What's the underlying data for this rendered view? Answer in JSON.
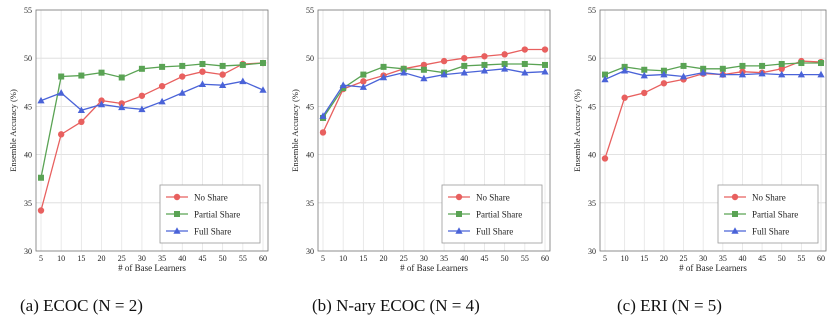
{
  "captions": [
    "(a) ECOC (N = 2)",
    "(b) N-ary ECOC (N = 4)",
    "(c) ERI (N = 5)"
  ],
  "chart_data": [
    {
      "type": "line",
      "xlabel": "# of Base Learners",
      "ylabel": "Ensemble Accuracy (%)",
      "x": [
        5,
        10,
        15,
        20,
        25,
        30,
        35,
        40,
        45,
        50,
        55,
        60
      ],
      "xticks": [
        "5",
        "10",
        "15",
        "20",
        "25",
        "30",
        "35",
        "40",
        "45",
        "50",
        "55",
        "60"
      ],
      "ylim": [
        30,
        55
      ],
      "yticks": [
        "30",
        "35",
        "40",
        "45",
        "50",
        "55"
      ],
      "grid": true,
      "legend": "bottom-right",
      "series": [
        {
          "name": "No Share",
          "color": "#e8605f",
          "marker": "circle",
          "values": [
            34.2,
            42.1,
            43.4,
            45.6,
            45.3,
            46.1,
            47.1,
            48.1,
            48.6,
            48.3,
            49.4,
            49.5
          ]
        },
        {
          "name": "Partial Share",
          "color": "#5aa354",
          "marker": "square",
          "values": [
            37.6,
            48.1,
            48.2,
            48.5,
            48.0,
            48.9,
            49.1,
            49.2,
            49.4,
            49.2,
            49.3,
            49.5
          ]
        },
        {
          "name": "Full Share",
          "color": "#4a63d8",
          "marker": "triangle",
          "values": [
            45.6,
            46.4,
            44.6,
            45.2,
            44.9,
            44.7,
            45.5,
            46.4,
            47.3,
            47.2,
            47.6,
            46.7
          ]
        }
      ]
    },
    {
      "type": "line",
      "xlabel": "# of Base Learners",
      "ylabel": "Ensemble Accuracy (%)",
      "x": [
        5,
        10,
        15,
        20,
        25,
        30,
        35,
        40,
        45,
        50,
        55,
        60
      ],
      "xticks": [
        "5",
        "10",
        "15",
        "20",
        "25",
        "30",
        "35",
        "40",
        "45",
        "50",
        "55",
        "60"
      ],
      "ylim": [
        30,
        55
      ],
      "yticks": [
        "30",
        "35",
        "40",
        "45",
        "50",
        "55"
      ],
      "grid": true,
      "legend": "bottom-right",
      "series": [
        {
          "name": "No Share",
          "color": "#e8605f",
          "marker": "circle",
          "values": [
            42.3,
            46.8,
            47.6,
            48.2,
            48.9,
            49.3,
            49.7,
            50.0,
            50.2,
            50.4,
            50.9,
            50.9
          ]
        },
        {
          "name": "Partial Share",
          "color": "#5aa354",
          "marker": "square",
          "values": [
            43.8,
            46.9,
            48.3,
            49.1,
            48.9,
            48.8,
            48.5,
            49.2,
            49.3,
            49.4,
            49.4,
            49.3
          ]
        },
        {
          "name": "Full Share",
          "color": "#4a63d8",
          "marker": "triangle",
          "values": [
            44.0,
            47.2,
            47.0,
            48.0,
            48.5,
            47.9,
            48.3,
            48.5,
            48.7,
            48.9,
            48.5,
            48.6
          ]
        }
      ]
    },
    {
      "type": "line",
      "xlabel": "# of Base Learners",
      "ylabel": "Ensemble Accuracy (%)",
      "x": [
        5,
        10,
        15,
        20,
        25,
        30,
        35,
        40,
        45,
        50,
        55,
        60
      ],
      "xticks": [
        "5",
        "10",
        "15",
        "20",
        "25",
        "30",
        "35",
        "40",
        "45",
        "50",
        "55",
        "60"
      ],
      "ylim": [
        30,
        55
      ],
      "yticks": [
        "30",
        "35",
        "40",
        "45",
        "50",
        "55"
      ],
      "grid": true,
      "legend": "bottom-right",
      "series": [
        {
          "name": "No Share",
          "color": "#e8605f",
          "marker": "circle",
          "values": [
            39.6,
            45.9,
            46.4,
            47.4,
            47.8,
            48.4,
            48.3,
            48.6,
            48.5,
            48.9,
            49.7,
            49.6
          ]
        },
        {
          "name": "Partial Share",
          "color": "#5aa354",
          "marker": "square",
          "values": [
            48.3,
            49.1,
            48.8,
            48.7,
            49.2,
            48.9,
            48.9,
            49.2,
            49.2,
            49.4,
            49.5,
            49.5
          ]
        },
        {
          "name": "Full Share",
          "color": "#4a63d8",
          "marker": "triangle",
          "values": [
            47.8,
            48.7,
            48.2,
            48.3,
            48.1,
            48.5,
            48.3,
            48.3,
            48.4,
            48.3,
            48.3,
            48.3
          ]
        }
      ]
    }
  ]
}
